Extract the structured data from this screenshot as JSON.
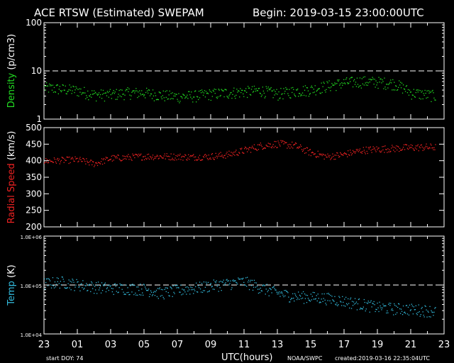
{
  "header": {
    "title": "ACE RTSW (Estimated) SWEPAM",
    "begin": "Begin: 2019-03-15 23:00:00UTC"
  },
  "footer": {
    "start_doy": "start DOY:  74",
    "source": "NOAA/SWPC",
    "created": "created:2019-03-16 22:35:04UTC"
  },
  "colors": {
    "background": "#000000",
    "density": "#22dd22",
    "speed": "#ee2222",
    "temp": "#33bbdd",
    "axes": "#ffffff"
  },
  "chart_data": [
    {
      "type": "scatter",
      "ylabel": "Density (p/cm3)",
      "ylog": true,
      "ylim": [
        1,
        100
      ],
      "yticks": [
        "1",
        "10",
        "100"
      ],
      "reference_line": 10,
      "x": [
        0,
        1,
        2,
        3,
        4,
        5,
        6,
        7,
        8,
        9,
        10,
        11,
        12,
        13,
        14,
        15,
        16,
        17,
        18,
        19,
        20,
        21,
        22,
        23.5
      ],
      "values": [
        4.6,
        4.3,
        4.0,
        3.3,
        3.3,
        3.6,
        3.6,
        3.2,
        3.0,
        3.1,
        3.4,
        3.6,
        3.8,
        4.0,
        3.4,
        3.9,
        4.2,
        5.0,
        5.8,
        6.2,
        6.0,
        5.6,
        3.6,
        3.1
      ]
    },
    {
      "type": "scatter",
      "ylabel": "Radial Speed (km/s)",
      "ylim": [
        200,
        500
      ],
      "yticks": [
        "200",
        "250",
        "300",
        "350",
        "400",
        "450",
        "500"
      ],
      "x": [
        0,
        1,
        2,
        3,
        4,
        5,
        6,
        7,
        8,
        9,
        10,
        11,
        12,
        13,
        14,
        15,
        16,
        17,
        18,
        19,
        20,
        21,
        22,
        23.5
      ],
      "values": [
        400,
        402,
        404,
        392,
        408,
        411,
        414,
        414,
        413,
        412,
        414,
        419,
        432,
        446,
        452,
        447,
        425,
        413,
        420,
        432,
        436,
        438,
        441,
        442
      ]
    },
    {
      "type": "scatter",
      "ylabel": "Temp (K)",
      "ylog": true,
      "ylim": [
        10000,
        1000000
      ],
      "yticks": [
        "1.0E+04",
        "1.0E+05",
        "1.0E+06"
      ],
      "reference_line": 100000,
      "x": [
        0,
        1,
        2,
        3,
        4,
        5,
        6,
        7,
        8,
        9,
        10,
        11,
        12,
        13,
        14,
        15,
        16,
        17,
        18,
        19,
        20,
        21,
        22,
        23.5
      ],
      "values": [
        110000,
        120000,
        105000,
        95000,
        88000,
        88000,
        85000,
        70000,
        80000,
        88000,
        100000,
        110000,
        120000,
        90000,
        70000,
        60000,
        58000,
        55000,
        48000,
        42000,
        36000,
        34000,
        33000,
        30000
      ]
    }
  ],
  "xaxis": {
    "label": "UTC(hours)",
    "ticks": [
      "23",
      "01",
      "03",
      "05",
      "07",
      "09",
      "11",
      "13",
      "15",
      "17",
      "19",
      "21",
      "23"
    ]
  }
}
